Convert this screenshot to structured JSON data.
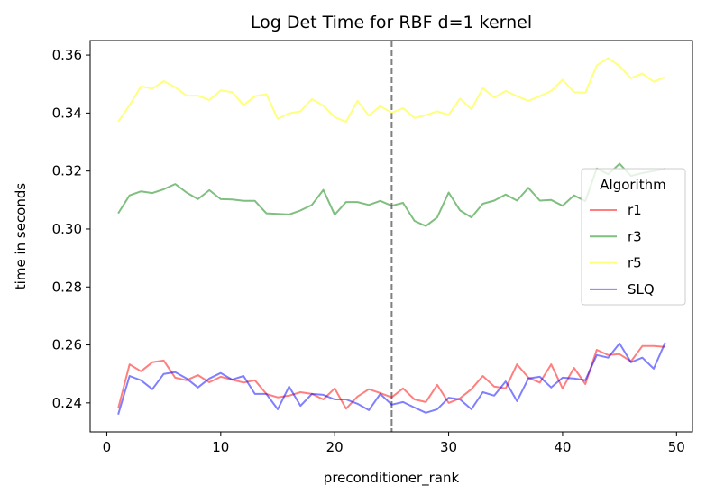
{
  "chart_data": {
    "type": "line",
    "title": "Log Det Time for RBF d=1 kernel",
    "xlabel": "preconditioner_rank",
    "ylabel": "time in seconds",
    "xlim": [
      -1.46,
      51.4
    ],
    "ylim": [
      0.23,
      0.365
    ],
    "xticks": [
      0,
      10,
      20,
      30,
      40,
      50
    ],
    "yticks": [
      0.24,
      0.26,
      0.28,
      0.3,
      0.32,
      0.34,
      0.36
    ],
    "ytick_labels": [
      "0.24",
      "0.26",
      "0.28",
      "0.30",
      "0.32",
      "0.34",
      "0.36"
    ],
    "grid": false,
    "vline": {
      "x": 25,
      "style": "dashed",
      "color": "#808080"
    },
    "legend": {
      "title": "Algorithm",
      "placement": "center-right"
    },
    "x": [
      1,
      2,
      3,
      4,
      5,
      6,
      7,
      8,
      9,
      10,
      11,
      12,
      13,
      14,
      15,
      16,
      17,
      18,
      19,
      20,
      21,
      22,
      23,
      24,
      25,
      26,
      27,
      28,
      29,
      30,
      31,
      32,
      33,
      34,
      35,
      36,
      37,
      38,
      39,
      40,
      41,
      42,
      43,
      44,
      45,
      46,
      47,
      48,
      49
    ],
    "series": [
      {
        "name": "r1",
        "color": "#ff0000",
        "values": [
          0.2381,
          0.2533,
          0.2509,
          0.254,
          0.2546,
          0.2487,
          0.2478,
          0.2496,
          0.2471,
          0.249,
          0.248,
          0.247,
          0.2478,
          0.2431,
          0.2419,
          0.2425,
          0.2437,
          0.2431,
          0.2412,
          0.245,
          0.238,
          0.2422,
          0.2447,
          0.2434,
          0.2419,
          0.245,
          0.2412,
          0.2403,
          0.2462,
          0.24,
          0.2416,
          0.2447,
          0.2493,
          0.2456,
          0.245,
          0.2533,
          0.2487,
          0.247,
          0.2533,
          0.245,
          0.2521,
          0.2465,
          0.2583,
          0.2565,
          0.2568,
          0.2543,
          0.2596,
          0.2596,
          0.2593
        ]
      },
      {
        "name": "r3",
        "color": "#008000",
        "values": [
          0.3054,
          0.3116,
          0.313,
          0.3124,
          0.3137,
          0.3155,
          0.3126,
          0.3103,
          0.3134,
          0.3103,
          0.3102,
          0.3097,
          0.3097,
          0.3054,
          0.3052,
          0.305,
          0.3064,
          0.3083,
          0.3135,
          0.3049,
          0.3093,
          0.3093,
          0.3083,
          0.3097,
          0.308,
          0.309,
          0.3028,
          0.301,
          0.304,
          0.3126,
          0.3064,
          0.304,
          0.3087,
          0.3098,
          0.3119,
          0.3098,
          0.3142,
          0.3098,
          0.31,
          0.308,
          0.3116,
          0.3096,
          0.3209,
          0.3189,
          0.3225,
          0.3183,
          0.3193,
          0.32,
          0.3208
        ]
      },
      {
        "name": "r5",
        "color": "#ffff00",
        "values": [
          0.337,
          0.3427,
          0.3492,
          0.3484,
          0.351,
          0.3489,
          0.346,
          0.346,
          0.3445,
          0.3478,
          0.3472,
          0.3427,
          0.3458,
          0.3465,
          0.338,
          0.3399,
          0.3406,
          0.3448,
          0.3425,
          0.3386,
          0.337,
          0.3442,
          0.3391,
          0.3424,
          0.3401,
          0.3417,
          0.3383,
          0.3393,
          0.3406,
          0.3394,
          0.345,
          0.3413,
          0.3486,
          0.3453,
          0.3476,
          0.3458,
          0.3442,
          0.3458,
          0.3476,
          0.3515,
          0.3472,
          0.347,
          0.3564,
          0.359,
          0.3562,
          0.352,
          0.3536,
          0.3508,
          0.3524
        ]
      },
      {
        "name": "SLQ",
        "color": "#0000ff",
        "values": [
          0.236,
          0.2493,
          0.2478,
          0.2447,
          0.25,
          0.2506,
          0.2484,
          0.2453,
          0.2484,
          0.2503,
          0.248,
          0.2493,
          0.2431,
          0.2431,
          0.2378,
          0.2456,
          0.239,
          0.2431,
          0.2428,
          0.2412,
          0.2412,
          0.2397,
          0.2375,
          0.2431,
          0.2394,
          0.2403,
          0.2384,
          0.2366,
          0.2378,
          0.2418,
          0.2412,
          0.2378,
          0.2437,
          0.2425,
          0.2474,
          0.2406,
          0.2484,
          0.249,
          0.2453,
          0.2487,
          0.2484,
          0.2478,
          0.2565,
          0.2556,
          0.2605,
          0.254,
          0.2556,
          0.2518,
          0.2608
        ]
      }
    ]
  }
}
